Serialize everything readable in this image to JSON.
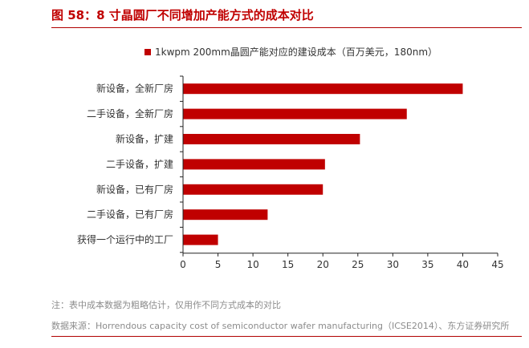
{
  "title": "图 58：8 寸晶圆厂不同增加产能方式的成本对比",
  "colors": {
    "bar": "#c00000",
    "title": "#c00000",
    "axis": "#222222",
    "note": "#8c8c8c"
  },
  "chart_data": {
    "type": "bar",
    "orientation": "horizontal",
    "categories": [
      "新设备，全新厂房",
      "二手设备，全新厂房",
      "新设备，扩建",
      "二手设备，扩建",
      "新设备，已有厂房",
      "二手设备，已有厂房",
      "获得一个运行中的工厂"
    ],
    "series": [
      {
        "name": "1kwpm 200mm晶圆产能对应的建设成本（百万美元，180nm）",
        "values": [
          40,
          32,
          25.3,
          20.3,
          20,
          12.1,
          5
        ]
      }
    ],
    "xlim": [
      0,
      45
    ],
    "xticks": [
      0,
      5,
      10,
      15,
      20,
      25,
      30,
      35,
      40,
      45
    ],
    "grid": false,
    "legend_position": "top"
  },
  "notes": {
    "note": "注：表中成本数据为粗略估计，仅用作不同方式成本的对比",
    "source": "数据来源：Horrendous capacity cost of semiconductor wafer manufacturing（ICSE2014）、东方证券研究所"
  }
}
